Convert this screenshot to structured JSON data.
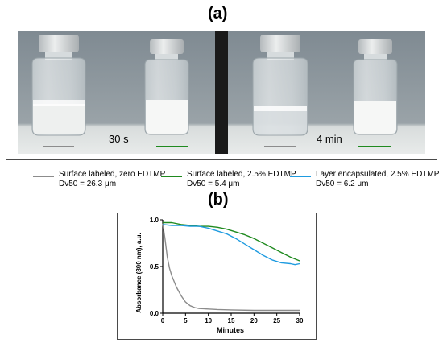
{
  "panel_a_label": "(a)",
  "panel_b_label": "(b)",
  "photo": {
    "left_time": "30 s",
    "right_time": "4 min"
  },
  "legend": [
    {
      "line1": "Surface labeled, zero EDTMP",
      "line2": "Dv50 = 26.3 μm",
      "color": "#8c8c8c"
    },
    {
      "line1": "Surface labeled, 2.5% EDTMP",
      "line2": "Dv50 = 5.4 μm",
      "color": "#1f8a1f"
    },
    {
      "line1": "Layer encapsulated, 2.5% EDTMP",
      "line2": "Dv50 = 6.2 μm",
      "color": "#1e9be0"
    }
  ],
  "chart_data": {
    "type": "line",
    "title": "",
    "xlabel": "Minutes",
    "ylabel": "Absorbance (800 nm), a.u.",
    "xlim": [
      0,
      30
    ],
    "ylim": [
      0,
      1.0
    ],
    "x_ticks": [
      "0",
      "5",
      "10",
      "15",
      "20",
      "25",
      "30"
    ],
    "y_ticks": [
      "0.0",
      "0.5",
      "1.0"
    ],
    "series": [
      {
        "name": "Surface labeled, zero EDTMP",
        "color": "#8c8c8c",
        "x": [
          0,
          0.5,
          1,
          1.5,
          2,
          3,
          4,
          5,
          6,
          7,
          8,
          10,
          12,
          15,
          20,
          25,
          30
        ],
        "y": [
          0.96,
          0.8,
          0.6,
          0.48,
          0.4,
          0.28,
          0.19,
          0.12,
          0.08,
          0.06,
          0.05,
          0.045,
          0.04,
          0.035,
          0.03,
          0.03,
          0.03
        ]
      },
      {
        "name": "Surface labeled, 2.5% EDTMP",
        "color": "#1f8a1f",
        "x": [
          0,
          2,
          4,
          6,
          8,
          10,
          12,
          14,
          16,
          18,
          20,
          22,
          24,
          26,
          28,
          30
        ],
        "y": [
          0.97,
          0.97,
          0.95,
          0.94,
          0.93,
          0.93,
          0.92,
          0.9,
          0.87,
          0.84,
          0.8,
          0.75,
          0.7,
          0.65,
          0.6,
          0.56
        ]
      },
      {
        "name": "Layer encapsulated, 2.5% EDTMP",
        "color": "#1e9be0",
        "x": [
          0,
          2,
          4,
          6,
          8,
          10,
          12,
          14,
          16,
          18,
          20,
          22,
          24,
          26,
          28,
          29,
          30
        ],
        "y": [
          0.95,
          0.94,
          0.94,
          0.93,
          0.93,
          0.91,
          0.88,
          0.85,
          0.8,
          0.74,
          0.68,
          0.62,
          0.57,
          0.54,
          0.53,
          0.52,
          0.53
        ]
      }
    ]
  }
}
